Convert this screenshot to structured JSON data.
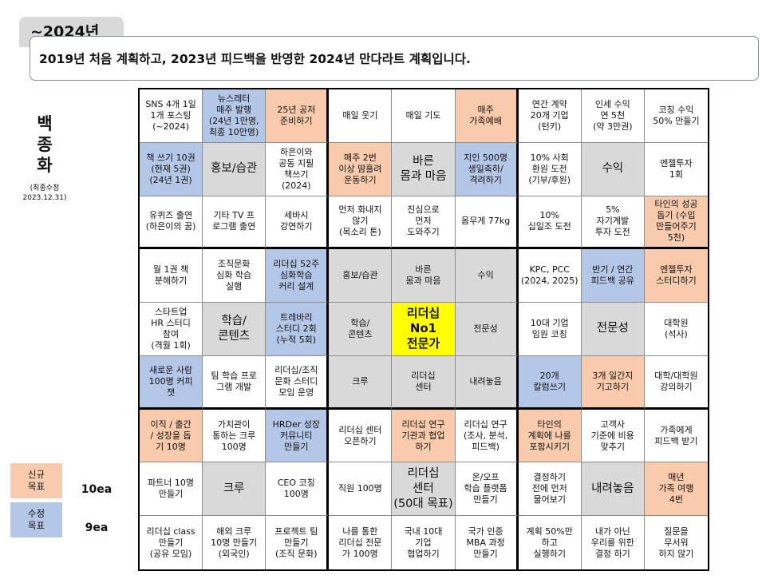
{
  "header": {
    "tab_title": "~2024년",
    "subtitle": "2019년 처음 계획하고, 2023년 피드백을 반영한 2024년 만다라트 계획입니다."
  },
  "author": {
    "name": "백\n종\n화",
    "revised_line1": "(최종수정",
    "revised_line2": "2023.12.31)"
  },
  "legend": {
    "new_label": "신규\n목표",
    "new_count": "10ea",
    "revised_label": "수정\n목표",
    "revised_count": "9ea"
  },
  "colors": {
    "new": "#f8cbad",
    "revised": "#b4c7e7",
    "theme": "#d9d9d9",
    "core": "#ffff00"
  },
  "grid": [
    [
      {
        "t": "SNS 4개 1일\n1개 포스팅\n(~2024)",
        "c": ""
      },
      {
        "t": "뉴스레터\n매주 발행\n(24년 1만명,\n최종 10만명)",
        "c": "blue"
      },
      {
        "t": "25년 공저\n준비하기",
        "c": "pink"
      },
      {
        "t": "매일 웃기",
        "c": ""
      },
      {
        "t": "매일 기도",
        "c": ""
      },
      {
        "t": "매주\n가족예배",
        "c": "pink"
      },
      {
        "t": "연간 계약\n20개 기업\n(턴키)",
        "c": ""
      },
      {
        "t": "인세 수익\n연 5천\n(약 3만권)",
        "c": ""
      },
      {
        "t": "코칭 수익\n50% 만들기",
        "c": ""
      }
    ],
    [
      {
        "t": "책 쓰기 10권\n(현재 5권)\n(24년 1권)",
        "c": "blue"
      },
      {
        "t": "홍보/습관",
        "c": "gray",
        "s": "big"
      },
      {
        "t": "하은이와\n공동 지필\n책쓰기\n(2024)",
        "c": ""
      },
      {
        "t": "매주 2번\n이상 땀흘려\n운동하기",
        "c": "pink"
      },
      {
        "t": "바른\n몸과 마음",
        "c": "gray",
        "s": "big"
      },
      {
        "t": "지인 500명\n생일축하/\n격려하기",
        "c": "blue"
      },
      {
        "t": "10% 사회\n환원 도전\n(기부/후원)",
        "c": ""
      },
      {
        "t": "수익",
        "c": "gray",
        "s": "big"
      },
      {
        "t": "엔젤투자\n1회",
        "c": ""
      }
    ],
    [
      {
        "t": "유퀴즈 출연\n(하은이의 꿈)",
        "c": ""
      },
      {
        "t": "기타 TV 프\n로그램 출연",
        "c": ""
      },
      {
        "t": "세바시\n강연하기",
        "c": ""
      },
      {
        "t": "먼저 화내지\n않기\n(목소리 톤)",
        "c": ""
      },
      {
        "t": "진심으로\n먼저\n도와주기",
        "c": ""
      },
      {
        "t": "몸무게 77kg",
        "c": ""
      },
      {
        "t": "10%\n십일조 도전",
        "c": ""
      },
      {
        "t": "5%\n자기계발\n투자 도전",
        "c": ""
      },
      {
        "t": "타인의 성공\n돕기 (수입\n만들어주기\n5천)",
        "c": "pink"
      }
    ],
    [
      {
        "t": "월 1권 책\n분해하기",
        "c": ""
      },
      {
        "t": "조직문화\n심화 학습\n실행",
        "c": ""
      },
      {
        "t": "리더십 52주\n심화학습\n커리 설계",
        "c": "blue"
      },
      {
        "t": "홍보/습관",
        "c": "gray"
      },
      {
        "t": "바른\n몸과 마음",
        "c": "gray"
      },
      {
        "t": "수익",
        "c": "gray"
      },
      {
        "t": "KPC, PCC\n(2024, 2025)",
        "c": ""
      },
      {
        "t": "반기 / 연간\n피드백 공유",
        "c": "blue"
      },
      {
        "t": "엔젤투자\n스터디하기",
        "c": "pink"
      }
    ],
    [
      {
        "t": "스타트업\nHR 스터디\n참여\n(격월 1회)",
        "c": ""
      },
      {
        "t": "학습/\n콘텐츠",
        "c": "gray",
        "s": "big"
      },
      {
        "t": "트레바리\n스터디 2회\n(누적 5회)",
        "c": "blue"
      },
      {
        "t": "학습/\n콘텐츠",
        "c": "gray"
      },
      {
        "t": "리더십\nNo1\n전문가",
        "c": "yellow",
        "s": "core"
      },
      {
        "t": "전문성",
        "c": "gray"
      },
      {
        "t": "10대 기업\n임원 코칭",
        "c": ""
      },
      {
        "t": "전문성",
        "c": "gray",
        "s": "big"
      },
      {
        "t": "대학원\n(석사)",
        "c": ""
      }
    ],
    [
      {
        "t": "새로운 사람\n100명 커피\n챗",
        "c": "blue"
      },
      {
        "t": "팀 학습 프로\n그램 개발",
        "c": ""
      },
      {
        "t": "리더십/조직\n문화 스터디\n모임 운영",
        "c": ""
      },
      {
        "t": "크루",
        "c": "gray"
      },
      {
        "t": "리더십\n센터",
        "c": "gray"
      },
      {
        "t": "내려놓음",
        "c": "gray"
      },
      {
        "t": "20개\n칼럼쓰기",
        "c": "blue"
      },
      {
        "t": "3개 일간지\n기고하기",
        "c": "pink"
      },
      {
        "t": "대학/대학원\n강의하기",
        "c": ""
      }
    ],
    [
      {
        "t": "이직 / 출간\n/ 성장을 돕\n기 10명",
        "c": "pink"
      },
      {
        "t": "가치관이\n통하는 크루\n100명",
        "c": ""
      },
      {
        "t": "HRDer 성장\n커뮤니티\n만들기",
        "c": "blue"
      },
      {
        "t": "리더십 센터\n오픈하기",
        "c": ""
      },
      {
        "t": "리더십 연구\n기관과 협업\n하기",
        "c": "pink"
      },
      {
        "t": "리더십 연구\n(조사, 분석,\n피드백)",
        "c": ""
      },
      {
        "t": "타인의\n계획에 나를\n포함시키기",
        "c": "pink"
      },
      {
        "t": "고객사\n기준에 비용\n맞추기",
        "c": ""
      },
      {
        "t": "가족에게\n피드백 받기",
        "c": ""
      }
    ],
    [
      {
        "t": "파트너 10명\n만들기",
        "c": ""
      },
      {
        "t": "크루",
        "c": "gray",
        "s": "big"
      },
      {
        "t": "CEO 코칭\n100명",
        "c": ""
      },
      {
        "t": "직원 100명",
        "c": ""
      },
      {
        "t": "리더십\n센터\n(50대 목표)",
        "c": "gray",
        "s": "big"
      },
      {
        "t": "온/오프\n학습 플랫폼\n만들기",
        "c": ""
      },
      {
        "t": "결정하기\n전에 먼저\n물어보기",
        "c": ""
      },
      {
        "t": "내려놓음",
        "c": "gray",
        "s": "big"
      },
      {
        "t": "매년\n가족 여행\n4번",
        "c": "pink"
      }
    ],
    [
      {
        "t": "리더십 class\n만들기\n(공유 모임)",
        "c": ""
      },
      {
        "t": "해외 크루\n10명 만들기\n(외국인)",
        "c": ""
      },
      {
        "t": "프로젝트 팀\n만들기\n(조직 문화)",
        "c": ""
      },
      {
        "t": "나를 통한\n리더십 전문\n가 100명",
        "c": ""
      },
      {
        "t": "국내 10대\n기업\n협업하기",
        "c": ""
      },
      {
        "t": "국가 인증\nMBA 과정\n만들기",
        "c": ""
      },
      {
        "t": "계획 50%만\n하고\n실행하기",
        "c": ""
      },
      {
        "t": "내가 아닌\n우리를 위한\n결정 하기",
        "c": ""
      },
      {
        "t": "질문을\n무서워\n하지 않기",
        "c": ""
      }
    ]
  ]
}
